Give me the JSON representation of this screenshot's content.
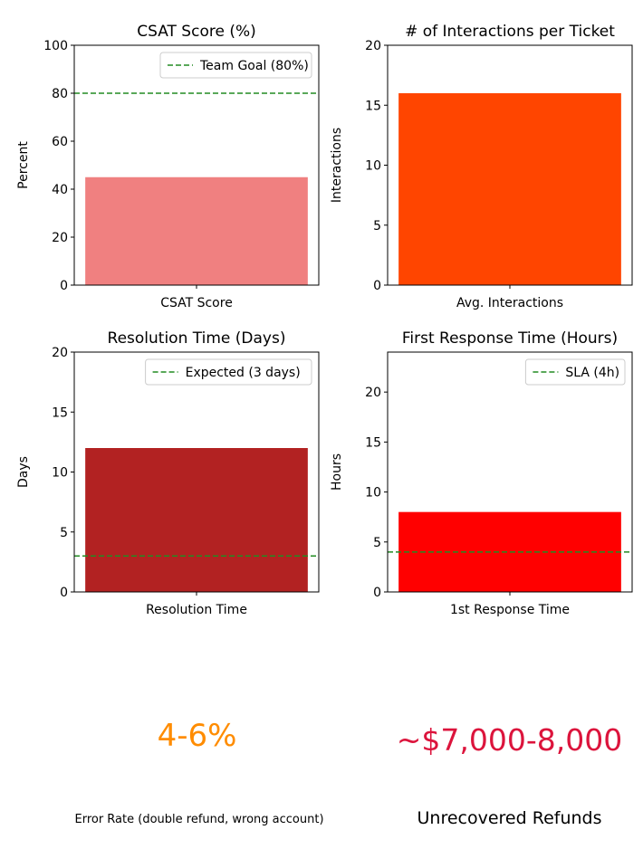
{
  "colors": {
    "csat_bar": "#F08080",
    "interactions_bar": "#FF4500",
    "resolution_bar": "#B22222",
    "response_bar": "#FF0000",
    "reference_line": "#228B22",
    "error_rate_text": "#FF8C00",
    "refunds_text": "#DC143C"
  },
  "chart_data": [
    {
      "type": "bar",
      "title": "CSAT Score (%)",
      "ylabel": "Percent",
      "categories": [
        "CSAT Score"
      ],
      "values": [
        45
      ],
      "ylim": [
        0,
        100
      ],
      "yticks": [
        0,
        20,
        40,
        60,
        80,
        100
      ],
      "reference_line": {
        "label": "Team Goal (80%)",
        "value": 80
      },
      "legend": "top-right"
    },
    {
      "type": "bar",
      "title": "# of Interactions per Ticket",
      "ylabel": "Interactions",
      "categories": [
        "Avg. Interactions"
      ],
      "values": [
        16
      ],
      "ylim": [
        0,
        20
      ],
      "yticks": [
        0,
        5,
        10,
        15,
        20
      ]
    },
    {
      "type": "bar",
      "title": "Resolution Time (Days)",
      "ylabel": "Days",
      "categories": [
        "Resolution Time"
      ],
      "values": [
        12
      ],
      "ylim": [
        0,
        20
      ],
      "yticks": [
        0,
        5,
        10,
        15,
        20
      ],
      "reference_line": {
        "label": "Expected (3 days)",
        "value": 3
      },
      "legend": "top-right"
    },
    {
      "type": "bar",
      "title": "First Response Time (Hours)",
      "ylabel": "Hours",
      "categories": [
        "1st Response Time"
      ],
      "values": [
        8
      ],
      "ylim": [
        0,
        24
      ],
      "yticks": [
        0,
        5,
        10,
        15,
        20
      ],
      "reference_line": {
        "label": "SLA (4h)",
        "value": 4
      },
      "legend": "top-right"
    }
  ],
  "metrics": {
    "error_rate": {
      "value": "4-6%",
      "label": "Error Rate (double refund, wrong account)"
    },
    "unrecovered_refunds": {
      "value": "~$7,000-8,000",
      "label": "Unrecovered Refunds"
    }
  }
}
